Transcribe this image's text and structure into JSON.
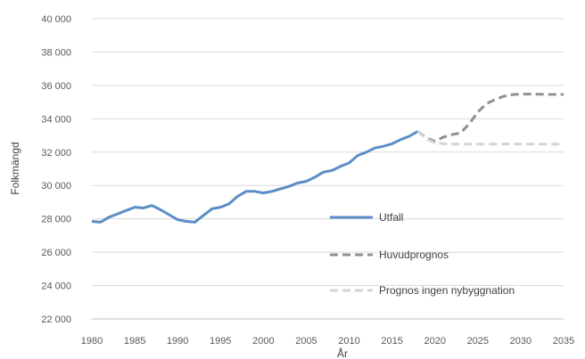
{
  "chart_data": {
    "type": "line",
    "xlabel": "År",
    "ylabel": "Folkmängd",
    "xlim": [
      1980,
      2035
    ],
    "ylim": [
      22000,
      40000
    ],
    "x_ticks": [
      "1980",
      "1985",
      "1990",
      "1995",
      "2000",
      "2005",
      "2010",
      "2015",
      "2020",
      "2025",
      "2030",
      "2035"
    ],
    "y_ticks": [
      "22 000",
      "24 000",
      "26 000",
      "28 000",
      "30 000",
      "32 000",
      "34 000",
      "36 000",
      "38 000",
      "40 000"
    ],
    "grid": "horizontal",
    "legend_position": "center-right",
    "series": [
      {
        "name": "Utfall",
        "color": "#5b8ec4",
        "style": "solid",
        "x": [
          1980,
          1981,
          1982,
          1983,
          1984,
          1985,
          1986,
          1987,
          1988,
          1989,
          1990,
          1991,
          1992,
          1993,
          1994,
          1995,
          1996,
          1997,
          1998,
          1999,
          2000,
          2001,
          2002,
          2003,
          2004,
          2005,
          2006,
          2007,
          2008,
          2009,
          2010,
          2011,
          2012,
          2013,
          2014,
          2015,
          2016,
          2017,
          2018
        ],
        "y": [
          27850,
          27800,
          28100,
          28300,
          28500,
          28700,
          28650,
          28800,
          28550,
          28250,
          27950,
          27850,
          27800,
          28200,
          28600,
          28700,
          28900,
          29350,
          29650,
          29650,
          29550,
          29650,
          29800,
          29950,
          30150,
          30250,
          30500,
          30800,
          30900,
          31150,
          31350,
          31800,
          32000,
          32250,
          32350,
          32500,
          32750,
          32950,
          33250
        ]
      },
      {
        "name": "Huvudprognos",
        "color": "#909090",
        "style": "dashed",
        "x": [
          2018,
          2019,
          2020,
          2021,
          2022,
          2023,
          2024,
          2025,
          2026,
          2027,
          2028,
          2029,
          2030,
          2031,
          2032,
          2033,
          2034,
          2035
        ],
        "y": [
          33250,
          32850,
          32650,
          32900,
          33050,
          33150,
          33700,
          34400,
          34900,
          35150,
          35350,
          35450,
          35480,
          35480,
          35470,
          35460,
          35460,
          35460
        ]
      },
      {
        "name": "Prognos ingen nybyggnation",
        "color": "#d4d4d4",
        "style": "dashed",
        "x": [
          2018,
          2019,
          2020,
          2021,
          2022,
          2023,
          2024,
          2025,
          2026,
          2027,
          2028,
          2029,
          2030,
          2031,
          2032,
          2033,
          2034,
          2035
        ],
        "y": [
          33250,
          32800,
          32550,
          32500,
          32480,
          32480,
          32480,
          32480,
          32480,
          32480,
          32480,
          32480,
          32480,
          32480,
          32480,
          32480,
          32480,
          32480
        ]
      }
    ]
  }
}
